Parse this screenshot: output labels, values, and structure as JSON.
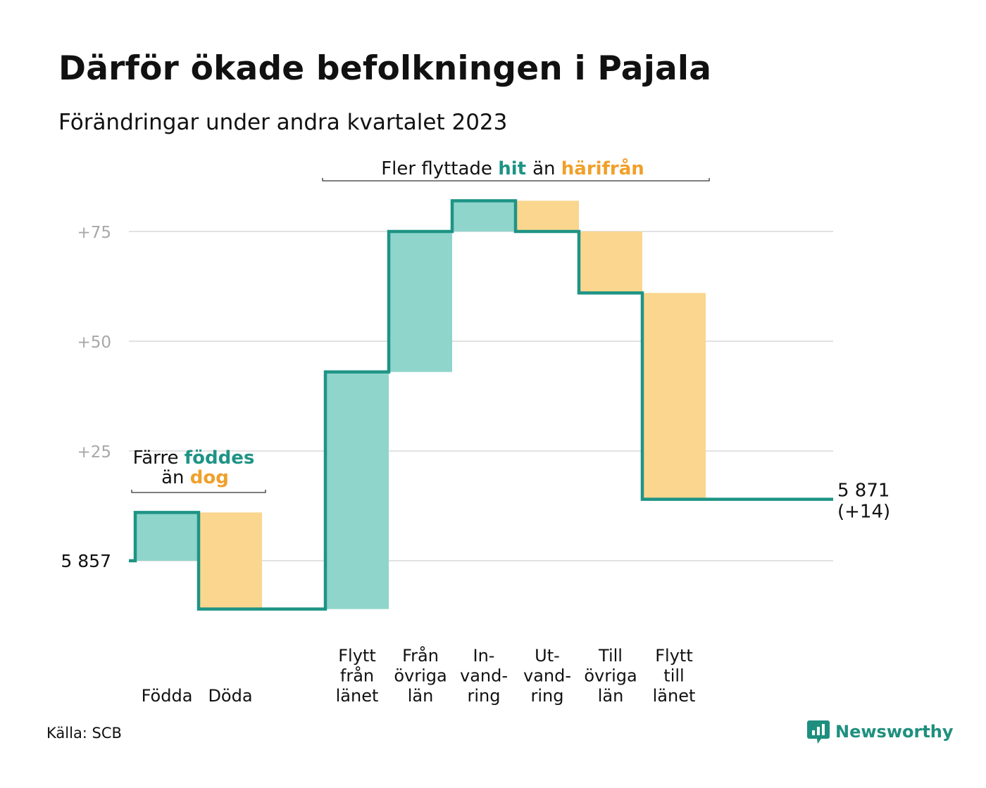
{
  "header": {
    "title": "Därför ökade befolkningen i Pajala",
    "subtitle": "Förändringar under andra kvartalet 2023"
  },
  "footer": {
    "source": "Källa: SCB",
    "brand": "Newsworthy",
    "brand_icon": "chart-bubble-icon"
  },
  "colors": {
    "inflow": "#8fd5cc",
    "outflow": "#fbd68e",
    "line": "#1e9485",
    "inflow_text": "#1e9485",
    "outflow_text": "#f0a02a",
    "grid": "#e2e2e2",
    "tick": "#a8a8a8"
  },
  "chart_data": {
    "type": "waterfall",
    "base_value": 5857,
    "base_label": "5  857",
    "categories": [
      {
        "label": [
          "Födda"
        ],
        "value": 11
      },
      {
        "label": [
          "Döda"
        ],
        "value": -22
      },
      {
        "label": [
          "Flytt",
          "från",
          "länet"
        ],
        "value": 54
      },
      {
        "label": [
          "Från",
          "övriga",
          "län"
        ],
        "value": 32
      },
      {
        "label": [
          "In-",
          "vand-",
          "ring"
        ],
        "value": 7
      },
      {
        "label": [
          "Ut-",
          "vand-",
          "ring"
        ],
        "value": -7
      },
      {
        "label": [
          "Till",
          "övriga",
          "län"
        ],
        "value": -14
      },
      {
        "label": [
          "Flytt",
          "till",
          "länet"
        ],
        "value": -47
      }
    ],
    "y_ticks": [
      {
        "value": 0,
        "label": ""
      },
      {
        "value": 25,
        "label": "+25"
      },
      {
        "value": 50,
        "label": "+50"
      },
      {
        "value": 75,
        "label": "+75"
      }
    ],
    "ylim": [
      -11,
      82
    ],
    "end_label_value": "5 871",
    "end_label_change": "(+14)",
    "annotations": {
      "natural": {
        "before": "Färre ",
        "highlight1": "föddes",
        "line2_before": "än ",
        "highlight2": "dog"
      },
      "migration": {
        "before": "Fler flyttade ",
        "highlight1": "hit",
        "middle": "än ",
        "highlight2": "härifrån"
      }
    }
  }
}
